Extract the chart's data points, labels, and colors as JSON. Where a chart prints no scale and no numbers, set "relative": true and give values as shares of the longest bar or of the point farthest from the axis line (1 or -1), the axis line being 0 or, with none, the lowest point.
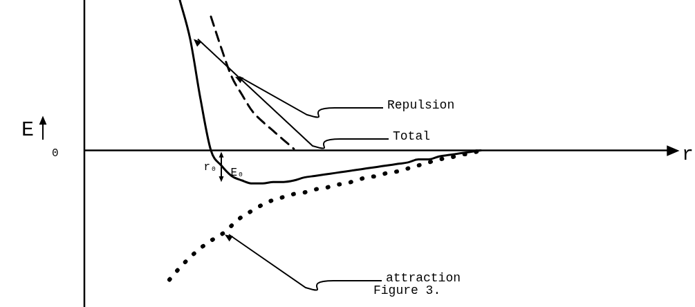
{
  "chart_data": {
    "type": "line",
    "relative": true,
    "categories": [
      null,
      null,
      null,
      null,
      null,
      null,
      null,
      null,
      null,
      null,
      null,
      null,
      null,
      null,
      null,
      null,
      null,
      null,
      null,
      null,
      null,
      null,
      null,
      null,
      null,
      null,
      null,
      null,
      null,
      null,
      null,
      null,
      null
    ],
    "annotations": [
      "0",
      "r₀",
      "E₀",
      "Figure 3.",
      "E",
      "r"
    ],
    "series": [
      {
        "name": "Repulsion",
        "color": "#000000",
        "line_style": "dashed",
        "values": [
          null,
          null,
          null,
          null,
          null,
          0.89,
          0.68,
          0.49,
          0.37,
          0.26,
          0.19,
          0.13,
          0.07,
          0.01,
          null,
          null,
          null,
          null,
          null,
          null,
          null,
          null,
          null,
          null,
          null,
          null,
          null,
          null,
          null,
          null,
          null,
          null,
          null
        ]
      },
      {
        "name": "Total",
        "color": "#000000",
        "line_style": "solid",
        "values": [
          null,
          null,
          1.0,
          0.74,
          0.34,
          0,
          -0.1,
          -0.17,
          -0.2,
          -0.22,
          -0.22,
          -0.21,
          -0.21,
          -0.2,
          -0.18,
          -0.17,
          -0.16,
          -0.15,
          -0.14,
          -0.13,
          -0.12,
          -0.11,
          -0.1,
          -0.09,
          -0.08,
          -0.06,
          -0.06,
          -0.04,
          -0.03,
          -0.02,
          -0.01,
          0,
          null
        ]
      },
      {
        "name": "attraction",
        "color": "#000000",
        "line_style": "dotted",
        "values": [
          null,
          -0.86,
          -0.78,
          -0.71,
          -0.65,
          -0.6,
          -0.56,
          -0.5,
          -0.44,
          -0.4,
          -0.36,
          -0.33,
          -0.31,
          -0.29,
          -0.28,
          -0.26,
          -0.25,
          -0.23,
          -0.22,
          -0.2,
          -0.18,
          -0.17,
          -0.15,
          -0.14,
          -0.12,
          -0.1,
          -0.08,
          -0.06,
          -0.05,
          -0.03,
          -0.02,
          0,
          null
        ]
      }
    ]
  }
}
